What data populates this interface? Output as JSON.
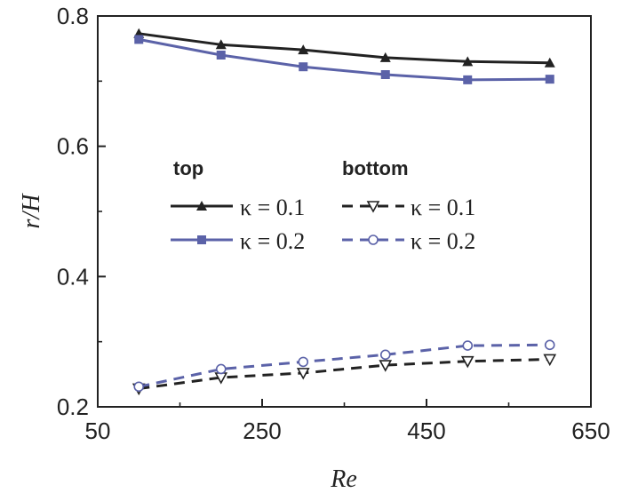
{
  "chart_data": {
    "type": "line",
    "xlabel": "Re",
    "ylabel": "r/H",
    "xlim": [
      50,
      650
    ],
    "ylim": [
      0.2,
      0.8
    ],
    "x_ticks": [
      "50",
      "250",
      "450",
      "650"
    ],
    "y_ticks": [
      "0.2",
      "0.4",
      "0.6",
      "0.8"
    ],
    "x": [
      100,
      200,
      300,
      400,
      500,
      600
    ],
    "legend": {
      "group_top": "top",
      "group_bottom": "bottom",
      "placement": "center-left"
    },
    "series": [
      {
        "name": "κ = 0.1",
        "group": "top",
        "color": "#222222",
        "dash": false,
        "marker": "filled-triangle-up",
        "values": [
          0.773,
          0.756,
          0.748,
          0.736,
          0.73,
          0.728
        ]
      },
      {
        "name": "κ = 0.2",
        "group": "top",
        "color": "#5b62a8",
        "dash": false,
        "marker": "filled-square",
        "values": [
          0.764,
          0.74,
          0.722,
          0.71,
          0.702,
          0.703
        ]
      },
      {
        "name": "κ = 0.1",
        "group": "bottom",
        "color": "#222222",
        "dash": true,
        "marker": "open-triangle-down",
        "values": [
          0.228,
          0.245,
          0.252,
          0.264,
          0.27,
          0.273
        ]
      },
      {
        "name": "κ = 0.2",
        "group": "bottom",
        "color": "#5b62a8",
        "dash": true,
        "marker": "open-circle",
        "values": [
          0.231,
          0.258,
          0.269,
          0.28,
          0.294,
          0.295
        ]
      }
    ]
  }
}
